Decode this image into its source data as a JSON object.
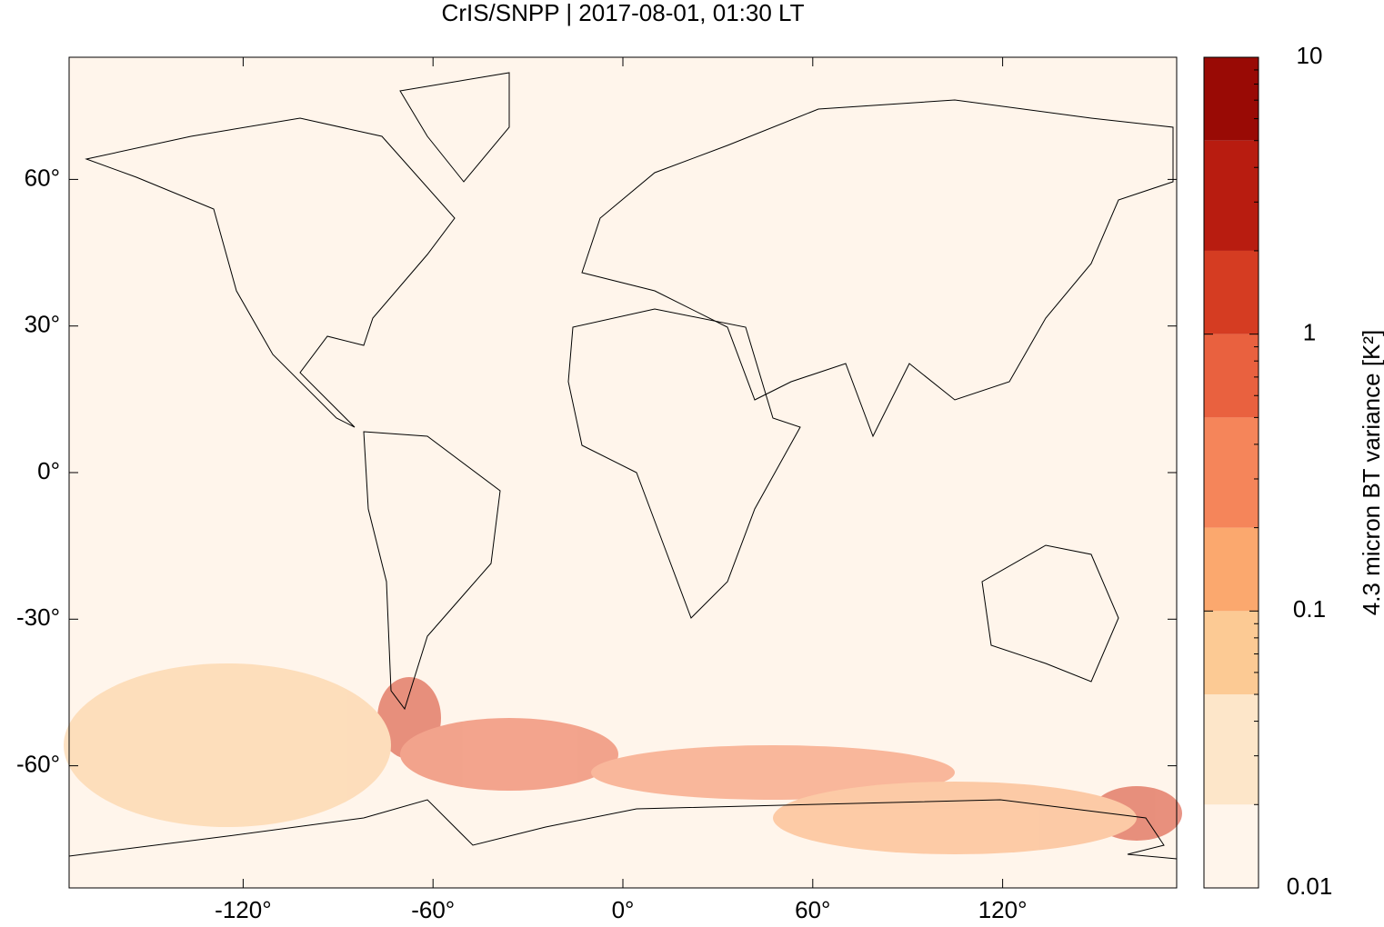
{
  "chart_data": {
    "type": "map",
    "title": "CrIS/SNPP | 2017-08-01, 01:30 LT",
    "xlim": [
      -175,
      175
    ],
    "ylim": [
      -85,
      85
    ],
    "xticks": [
      {
        "value": -120,
        "label": "-120°"
      },
      {
        "value": -60,
        "label": "-60°"
      },
      {
        "value": 0,
        "label": "0°"
      },
      {
        "value": 60,
        "label": "60°"
      },
      {
        "value": 120,
        "label": "120°"
      }
    ],
    "yticks": [
      {
        "value": -60,
        "label": "-60°"
      },
      {
        "value": -30,
        "label": "-30°"
      },
      {
        "value": 0,
        "label": "0°"
      },
      {
        "value": 30,
        "label": "30°"
      },
      {
        "value": 60,
        "label": "60°"
      }
    ],
    "colorbar": {
      "label": "4.3 micron BT variance [K²]",
      "log": true,
      "lim": [
        0.01,
        10
      ],
      "ticks": [
        0.01,
        0.1,
        1,
        10
      ],
      "minor_ticks": [
        0.02,
        0.03,
        0.04,
        0.05,
        0.06,
        0.07,
        0.08,
        0.09,
        0.2,
        0.3,
        0.4,
        0.5,
        0.6,
        0.7,
        0.8,
        0.9,
        2,
        3,
        4,
        5,
        6,
        7,
        8,
        9
      ],
      "levels": [
        0.01,
        0.02,
        0.05,
        0.1,
        0.2,
        0.5,
        1,
        2,
        5,
        10
      ],
      "colors": [
        "#fff5eb",
        "#fde6c9",
        "#fcca94",
        "#fba86e",
        "#f5855a",
        "#e9613f",
        "#d53c22",
        "#b81c10",
        "#990a05"
      ]
    }
  }
}
